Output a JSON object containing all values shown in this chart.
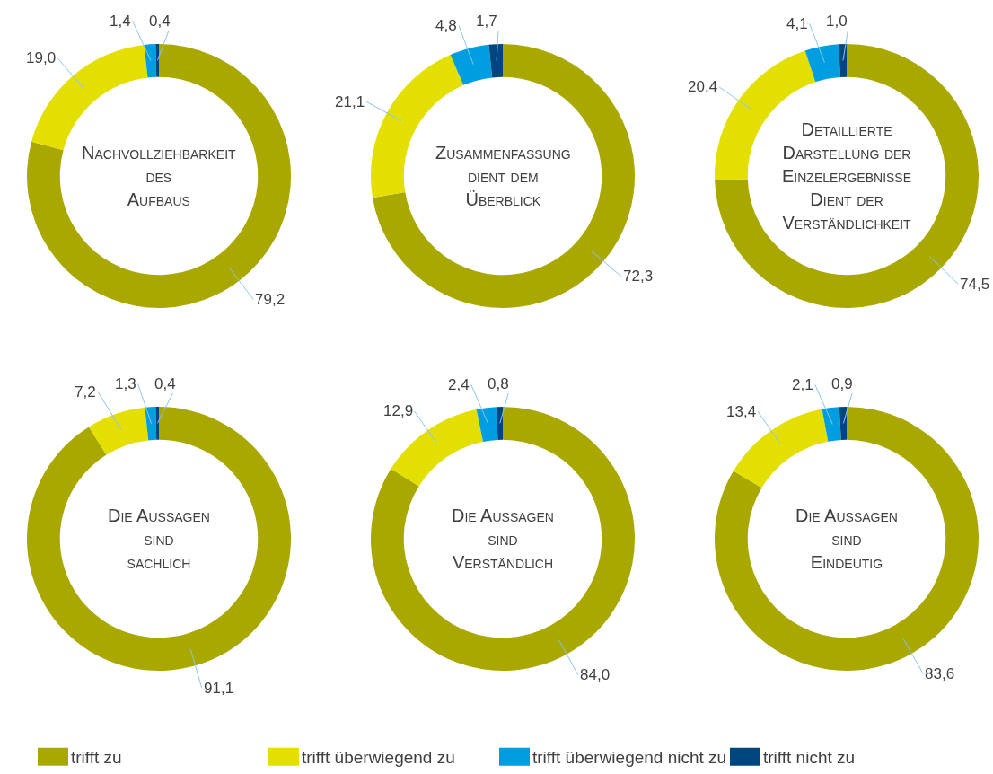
{
  "chart_data": [
    {
      "type": "donut",
      "title": "Nachvollziehbarkeit\ndes\nAufbaus",
      "categories": [
        "trifft zu",
        "trifft überwiegend zu",
        "trifft überwiegend nicht zu",
        "trifft nicht zu"
      ],
      "values": [
        79.2,
        19.0,
        1.4,
        0.4
      ],
      "value_labels": [
        "79,2",
        "19,0",
        "1,4",
        "0,4"
      ],
      "colors": [
        "#a9a800",
        "#e3df00",
        "#009ee0",
        "#00467e"
      ],
      "legend": "bottom"
    },
    {
      "type": "donut",
      "title": "Zusammenfassung\ndient dem\nÜberblick",
      "categories": [
        null,
        null,
        null,
        null
      ],
      "values": [
        72.3,
        21.1,
        4.8,
        1.7
      ],
      "value_labels": [
        "72,3",
        "21,1",
        "4,8",
        "1,7"
      ],
      "colors": [
        "#a9a800",
        "#e3df00",
        "#009ee0",
        "#00467e"
      ]
    },
    {
      "type": "donut",
      "title": "Detaillierte\nDarstellung der\nEinzelergebnisse\nDient der\nVerständlichkeit",
      "categories": [
        null,
        null,
        null,
        null
      ],
      "values": [
        74.5,
        20.4,
        4.1,
        1.0
      ],
      "value_labels": [
        "74,5",
        "20,4",
        "4,1",
        "1,0"
      ],
      "colors": [
        "#a9a800",
        "#e3df00",
        "#009ee0",
        "#00467e"
      ]
    },
    {
      "type": "donut",
      "title": "Die Aussagen\nsind\nsachlich",
      "categories": [
        null,
        null,
        null,
        null
      ],
      "values": [
        91.1,
        7.2,
        1.3,
        0.4
      ],
      "value_labels": [
        "91,1",
        "7,2",
        "1,3",
        "0,4"
      ],
      "colors": [
        "#a9a800",
        "#e3df00",
        "#009ee0",
        "#00467e"
      ]
    },
    {
      "type": "donut",
      "title": "Die Aussagen\nsind\nVerständlich",
      "categories": [
        null,
        null,
        null,
        null
      ],
      "values": [
        84.0,
        12.9,
        2.4,
        0.8
      ],
      "value_labels": [
        "84,0",
        "12,9",
        "2,4",
        "0,8"
      ],
      "colors": [
        "#a9a800",
        "#e3df00",
        "#009ee0",
        "#00467e"
      ]
    },
    {
      "type": "donut",
      "title": "Die Aussagen\nsind\nEindeutig",
      "categories": [
        null,
        null,
        null,
        null
      ],
      "values": [
        83.6,
        13.4,
        2.1,
        0.9
      ],
      "value_labels": [
        "83,6",
        "13,4",
        "2,1",
        "0,9"
      ],
      "colors": [
        "#a9a800",
        "#e3df00",
        "#009ee0",
        "#00467e"
      ]
    }
  ]
}
